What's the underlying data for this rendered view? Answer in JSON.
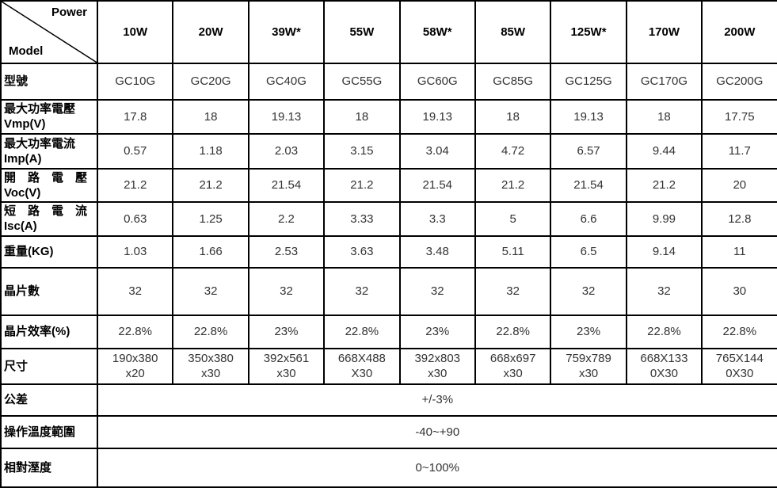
{
  "colors": {
    "band_bg": "#c9f2f9",
    "border": "#000000",
    "value_text": "#333333"
  },
  "corner": {
    "top_right_label": "Power",
    "bottom_left_label": "Model"
  },
  "power_headers": [
    "10W",
    "20W",
    "39W*",
    "55W",
    "58W*",
    "85W",
    "125W*",
    "170W",
    "200W"
  ],
  "spec_rows": [
    {
      "label": "型號",
      "values": [
        "GC10G",
        "GC20G",
        "GC40G",
        "GC55G",
        "GC60G",
        "GC85G",
        "GC125G",
        "GC170G",
        "GC200G"
      ]
    },
    {
      "label": "最大功率電壓\nVmp(V)",
      "values": [
        "17.8",
        "18",
        "19.13",
        "18",
        "19.13",
        "18",
        "19.13",
        "18",
        "17.75"
      ]
    },
    {
      "label": "最大功率電流\nImp(A)",
      "values": [
        "0.57",
        "1.18",
        "2.03",
        "3.15",
        "3.04",
        "4.72",
        "6.57",
        "9.44",
        "11.7"
      ]
    },
    {
      "label": "開　路　電　壓\nVoc(V)",
      "values": [
        "21.2",
        "21.2",
        "21.54",
        "21.2",
        "21.54",
        "21.2",
        "21.54",
        "21.2",
        "20"
      ]
    },
    {
      "label": "短　路　電　流\nIsc(A)",
      "values": [
        "0.63",
        "1.25",
        "2.2",
        "3.33",
        "3.3",
        "5",
        "6.6",
        "9.99",
        "12.8"
      ]
    },
    {
      "label": "重量(KG)",
      "values": [
        "1.03",
        "1.66",
        "2.53",
        "3.63",
        "3.48",
        "5.11",
        "6.5",
        "9.14",
        "11"
      ]
    },
    {
      "label": "晶片數",
      "values": [
        "32",
        "32",
        "32",
        "32",
        "32",
        "32",
        "32",
        "32",
        "30"
      ]
    },
    {
      "label": "晶片效率(%)",
      "values": [
        "22.8%",
        "22.8%",
        "23%",
        "22.8%",
        "23%",
        "22.8%",
        "23%",
        "22.8%",
        "22.8%"
      ]
    },
    {
      "label": "尺寸",
      "values": [
        "190x380\nx20",
        "350x380\nx30",
        "392x561\nx30",
        "668X488\nX30",
        "392x803\nx30",
        "668x697\nx30",
        "759x789\nx30",
        "668X133\n0X30",
        "765X144\n0X30"
      ]
    }
  ],
  "merged_rows": [
    {
      "label": "公差",
      "value": "+/-3%"
    },
    {
      "label": "操作溫度範圍",
      "value": "-40~+90"
    },
    {
      "label": "相對溼度",
      "value": "0~100%"
    }
  ]
}
